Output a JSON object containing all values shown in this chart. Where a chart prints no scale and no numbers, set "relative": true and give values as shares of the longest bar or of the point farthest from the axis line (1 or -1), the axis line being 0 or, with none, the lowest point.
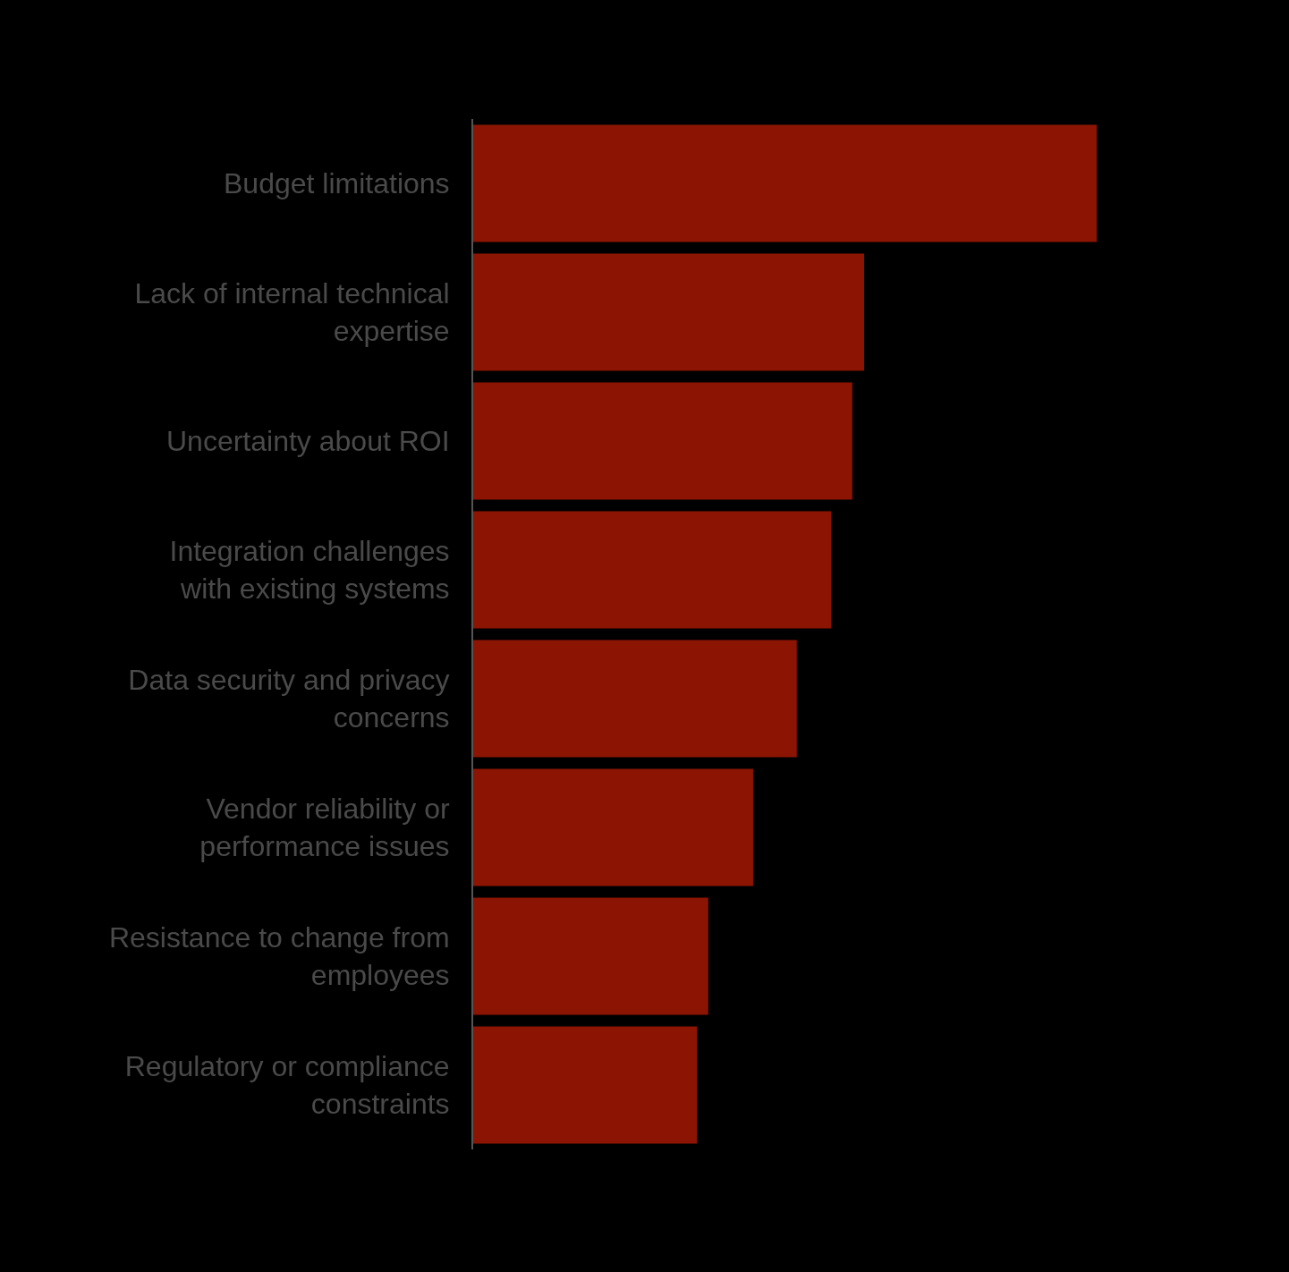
{
  "chart_data": {
    "type": "bar",
    "orientation": "horizontal",
    "relative": true,
    "color": "#8b1502",
    "categories": [
      "Budget limitations",
      "Lack of internal technical expertise",
      "Uncertainty about ROI",
      "Integration challenges with existing systems",
      "Data security and privacy concerns",
      "Vendor reliability or performance issues",
      "Resistance to change from employees",
      "Regulatory or compliance constraints"
    ],
    "values": [
      1,
      0.627,
      0.608,
      0.574,
      0.519,
      0.449,
      0.377,
      0.359
    ]
  }
}
